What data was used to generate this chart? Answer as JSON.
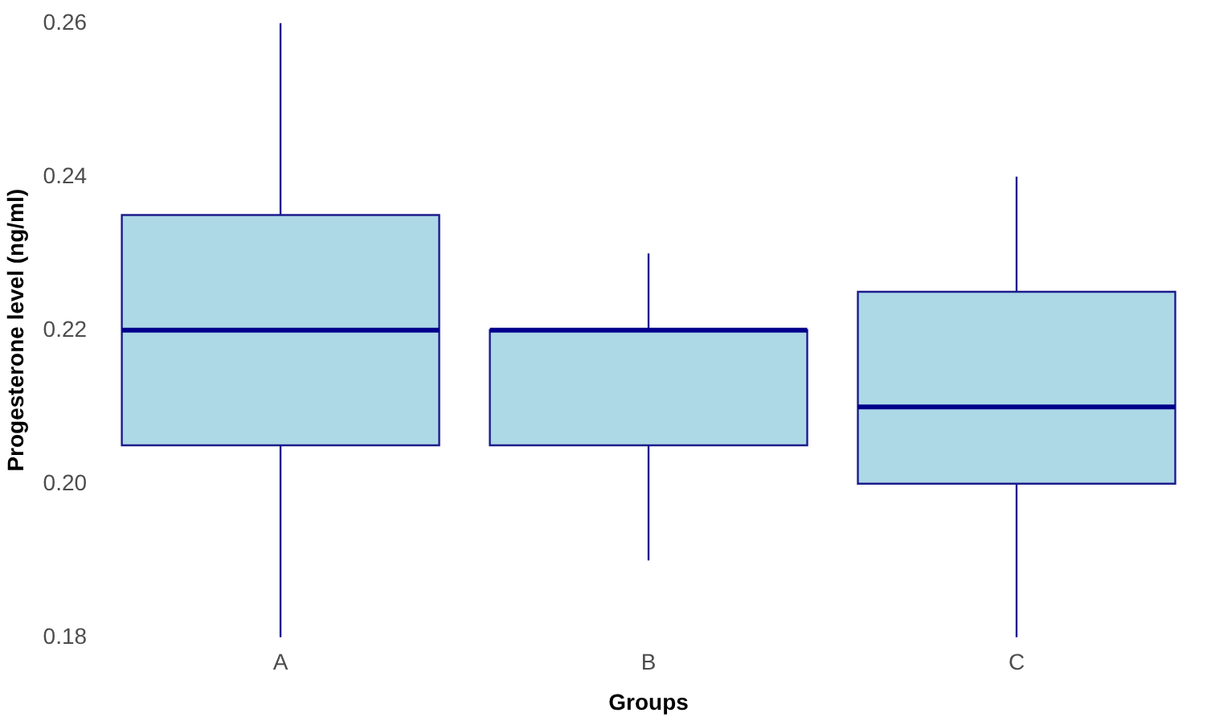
{
  "chart_data": {
    "type": "box",
    "xlabel": "Groups",
    "ylabel": "Progesterone level (ng/ml)",
    "categories": [
      "A",
      "B",
      "C"
    ],
    "color": "#add8e6",
    "boxes": [
      {
        "low": 0.18,
        "q1": 0.205,
        "median": 0.22,
        "q3": 0.235,
        "high": 0.26
      },
      {
        "low": 0.19,
        "q1": 0.205,
        "median": 0.22,
        "q3": 0.22,
        "high": 0.23
      },
      {
        "low": 0.18,
        "q1": 0.2,
        "median": 0.21,
        "q3": 0.225,
        "high": 0.24
      }
    ],
    "ylim": [
      0.18,
      0.26
    ],
    "yticks": [
      0.18,
      {
        "value": 0.2,
        "label": "0.20"
      },
      0.22,
      0.24,
      0.26
    ]
  }
}
